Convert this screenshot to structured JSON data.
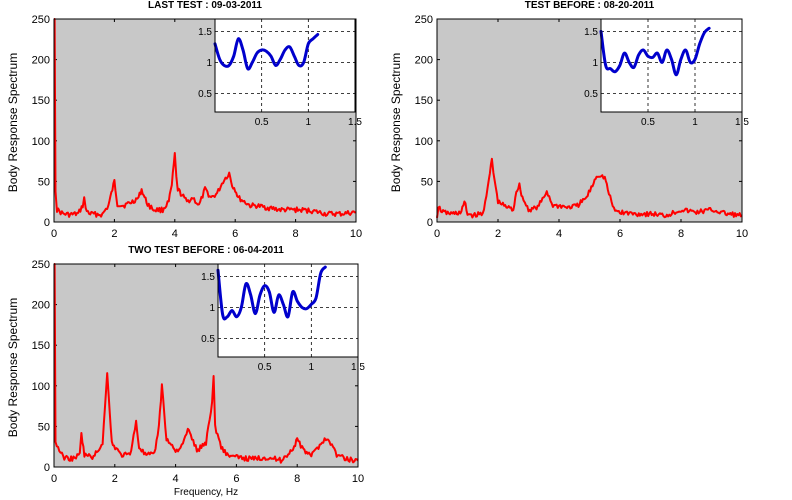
{
  "chart_data": [
    {
      "type": "line",
      "title": "LAST TEST : 09-03-2011",
      "ylabel": "Body Response Spectrum",
      "xlabel": "",
      "xlim": [
        0,
        10
      ],
      "ylim": [
        0,
        250
      ],
      "xticks": [
        "0",
        "2",
        "4",
        "6",
        "8",
        "10"
      ],
      "yticks": [
        "0",
        "50",
        "100",
        "150",
        "200",
        "250"
      ],
      "grid": false,
      "background": "#c8c8c8",
      "series_color": "#ff0000",
      "series": [
        {
          "x": [
            0,
            0.02,
            0.05,
            0.1,
            0.3,
            0.5,
            0.8,
            0.95,
            1.0,
            1.05,
            1.2,
            1.6,
            1.8,
            1.9,
            2.0,
            2.1,
            2.3,
            2.6,
            2.8,
            2.9,
            3.0,
            3.1,
            3.3,
            3.6,
            3.8,
            3.9,
            4.0,
            4.05,
            4.1,
            4.2,
            4.4,
            4.6,
            4.8,
            5.0,
            5.2,
            5.4,
            5.6,
            5.8,
            5.9,
            6.0,
            6.1,
            6.3,
            6.5,
            6.7,
            7.0,
            7.5,
            8.0,
            8.5,
            9.0,
            9.5,
            10.0
          ],
          "y": [
            250,
            250,
            40,
            15,
            10,
            9,
            10,
            20,
            30,
            15,
            10,
            9,
            20,
            35,
            50,
            22,
            20,
            25,
            30,
            40,
            30,
            22,
            15,
            15,
            25,
            45,
            83,
            55,
            40,
            35,
            25,
            30,
            20,
            40,
            30,
            35,
            50,
            60,
            45,
            40,
            30,
            25,
            20,
            20,
            18,
            15,
            15,
            14,
            10,
            10,
            12
          ]
        }
      ],
      "inset": {
        "xlim": [
          0,
          1.5
        ],
        "ylim": [
          0.2,
          1.7
        ],
        "xticks": [
          "0.5",
          "1",
          "1.5"
        ],
        "yticks": [
          "0.5",
          "1",
          "1.5"
        ],
        "grid": true,
        "series_color": "#0000cc",
        "x": [
          0,
          0.05,
          0.1,
          0.15,
          0.2,
          0.25,
          0.3,
          0.35,
          0.4,
          0.45,
          0.5,
          0.55,
          0.6,
          0.65,
          0.7,
          0.75,
          0.8,
          0.85,
          0.9,
          0.95,
          1.0,
          1.05,
          1.1
        ],
        "y": [
          1.3,
          1.05,
          0.95,
          0.95,
          1.1,
          1.38,
          1.2,
          0.9,
          1.0,
          1.15,
          1.2,
          1.18,
          1.1,
          0.95,
          1.05,
          1.2,
          1.25,
          1.1,
          0.95,
          1.0,
          1.3,
          1.38,
          1.45
        ]
      }
    },
    {
      "type": "line",
      "title": "TEST BEFORE : 08-20-2011",
      "ylabel": "Body Response Spectrum",
      "xlabel": "",
      "xlim": [
        0,
        10
      ],
      "ylim": [
        0,
        250
      ],
      "xticks": [
        "0",
        "2",
        "4",
        "6",
        "8",
        "10"
      ],
      "yticks": [
        "0",
        "50",
        "100",
        "150",
        "200",
        "250"
      ],
      "grid": false,
      "background": "#c8c8c8",
      "series_color": "#ff0000",
      "series": [
        {
          "x": [
            0,
            0.05,
            0.2,
            0.5,
            0.8,
            0.9,
            1.0,
            1.2,
            1.5,
            1.7,
            1.8,
            1.85,
            2.0,
            2.2,
            2.5,
            2.6,
            2.7,
            2.8,
            3.0,
            3.3,
            3.5,
            3.6,
            3.8,
            4.0,
            4.3,
            4.6,
            4.9,
            5.1,
            5.2,
            5.3,
            5.5,
            5.6,
            5.8,
            6.0,
            6.5,
            7.0,
            7.5,
            8.0,
            8.5,
            9.0,
            9.5,
            10.0
          ],
          "y": [
            5,
            18,
            12,
            10,
            12,
            25,
            10,
            8,
            10,
            50,
            78,
            60,
            25,
            20,
            15,
            38,
            45,
            30,
            15,
            18,
            30,
            38,
            20,
            20,
            18,
            20,
            30,
            45,
            55,
            58,
            55,
            40,
            15,
            12,
            10,
            10,
            8,
            15,
            12,
            15,
            10,
            8
          ]
        }
      ],
      "inset": {
        "xlim": [
          0,
          1.5
        ],
        "ylim": [
          0.2,
          1.7
        ],
        "xticks": [
          "0.5",
          "1",
          "1.5"
        ],
        "yticks": [
          "0.5",
          "1",
          "1.5"
        ],
        "grid": true,
        "series_color": "#0000cc",
        "x": [
          0,
          0.05,
          0.1,
          0.15,
          0.2,
          0.25,
          0.3,
          0.35,
          0.4,
          0.45,
          0.5,
          0.55,
          0.6,
          0.65,
          0.7,
          0.75,
          0.8,
          0.85,
          0.9,
          0.95,
          1.0,
          1.05,
          1.1,
          1.15
        ],
        "y": [
          1.5,
          0.95,
          0.9,
          0.85,
          0.95,
          1.15,
          1.0,
          0.92,
          1.12,
          1.2,
          1.1,
          1.08,
          1.15,
          1.0,
          1.2,
          1.05,
          0.8,
          1.05,
          1.2,
          1.0,
          1.05,
          1.3,
          1.48,
          1.55
        ]
      }
    },
    {
      "type": "line",
      "title": "TWO TEST BEFORE : 06-04-2011",
      "ylabel": "Body Response Spectrum",
      "xlabel": "Frequency, Hz",
      "xlim": [
        0,
        10
      ],
      "ylim": [
        0,
        250
      ],
      "xticks": [
        "0",
        "2",
        "4",
        "6",
        "8",
        "10"
      ],
      "yticks": [
        "0",
        "50",
        "100",
        "150",
        "200",
        "250"
      ],
      "grid": false,
      "background": "#c8c8c8",
      "series_color": "#ff0000",
      "series": [
        {
          "x": [
            0,
            0.02,
            0.05,
            0.3,
            0.6,
            0.85,
            0.9,
            1.0,
            1.3,
            1.6,
            1.75,
            1.8,
            1.9,
            2.2,
            2.5,
            2.7,
            2.8,
            3.0,
            3.3,
            3.45,
            3.55,
            3.7,
            4.0,
            4.2,
            4.4,
            4.5,
            4.7,
            5.0,
            5.2,
            5.25,
            5.3,
            5.5,
            5.7,
            6.0,
            6.5,
            7.0,
            7.5,
            7.9,
            8.0,
            8.2,
            8.5,
            8.7,
            8.9,
            9.1,
            9.3,
            9.6,
            10.0
          ],
          "y": [
            250,
            250,
            30,
            12,
            10,
            15,
            40,
            15,
            12,
            30,
            115,
            90,
            30,
            15,
            15,
            55,
            25,
            15,
            15,
            50,
            100,
            35,
            20,
            25,
            45,
            40,
            20,
            30,
            80,
            110,
            50,
            25,
            15,
            12,
            10,
            12,
            8,
            25,
            35,
            20,
            15,
            25,
            35,
            30,
            15,
            10,
            8
          ]
        }
      ],
      "inset": {
        "xlim": [
          0,
          1.5
        ],
        "ylim": [
          0.2,
          1.7
        ],
        "xticks": [
          "0.5",
          "1",
          "1.5"
        ],
        "yticks": [
          "0.5",
          "1",
          "1.5"
        ],
        "grid": true,
        "series_color": "#0000cc",
        "x": [
          0,
          0.05,
          0.1,
          0.15,
          0.2,
          0.25,
          0.3,
          0.35,
          0.4,
          0.45,
          0.5,
          0.55,
          0.6,
          0.65,
          0.7,
          0.75,
          0.8,
          0.85,
          0.9,
          0.95,
          1.0,
          1.05,
          1.1,
          1.15
        ],
        "y": [
          1.6,
          0.88,
          0.85,
          0.95,
          0.85,
          1.0,
          1.38,
          1.2,
          0.9,
          1.2,
          1.35,
          1.25,
          0.92,
          1.2,
          1.05,
          0.85,
          1.25,
          1.1,
          1.0,
          0.98,
          1.05,
          1.15,
          1.55,
          1.65
        ]
      }
    }
  ]
}
